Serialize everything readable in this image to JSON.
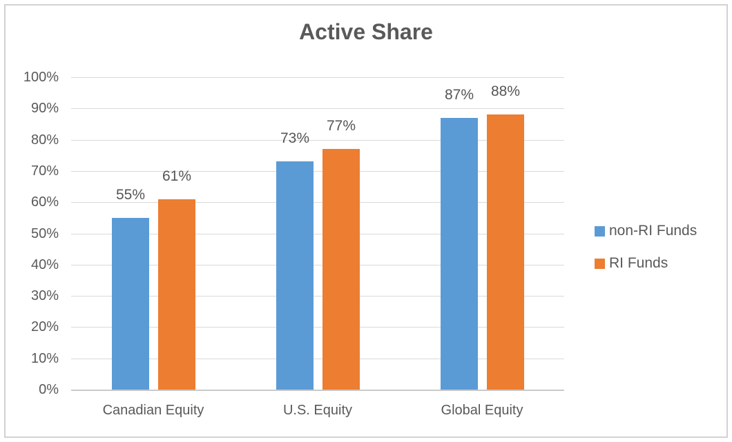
{
  "chart_data": {
    "type": "bar",
    "title": "Active Share",
    "categories": [
      "Canadian Equity",
      "U.S. Equity",
      "Global Equity"
    ],
    "series": [
      {
        "name": "non-RI Funds",
        "color": "#5B9BD5",
        "values": [
          55,
          73,
          87
        ]
      },
      {
        "name": "RI Funds",
        "color": "#ED7D31",
        "values": [
          61,
          77,
          88
        ]
      }
    ],
    "data_labels": [
      [
        "55%",
        "73%",
        "87%"
      ],
      [
        "61%",
        "77%",
        "88%"
      ]
    ],
    "y_axis": {
      "min": 0,
      "max": 100,
      "step": 10,
      "tick_labels": [
        "0%",
        "10%",
        "20%",
        "30%",
        "40%",
        "50%",
        "60%",
        "70%",
        "80%",
        "90%",
        "100%"
      ]
    },
    "xlabel": "",
    "ylabel": "",
    "grid": true,
    "legend_position": "right",
    "colors": {
      "text": "#595959",
      "gridline": "#D9D9D9",
      "axis_line": "#C9C9C9",
      "frame_border": "#D2D2D2",
      "background": "#FFFFFF"
    }
  }
}
